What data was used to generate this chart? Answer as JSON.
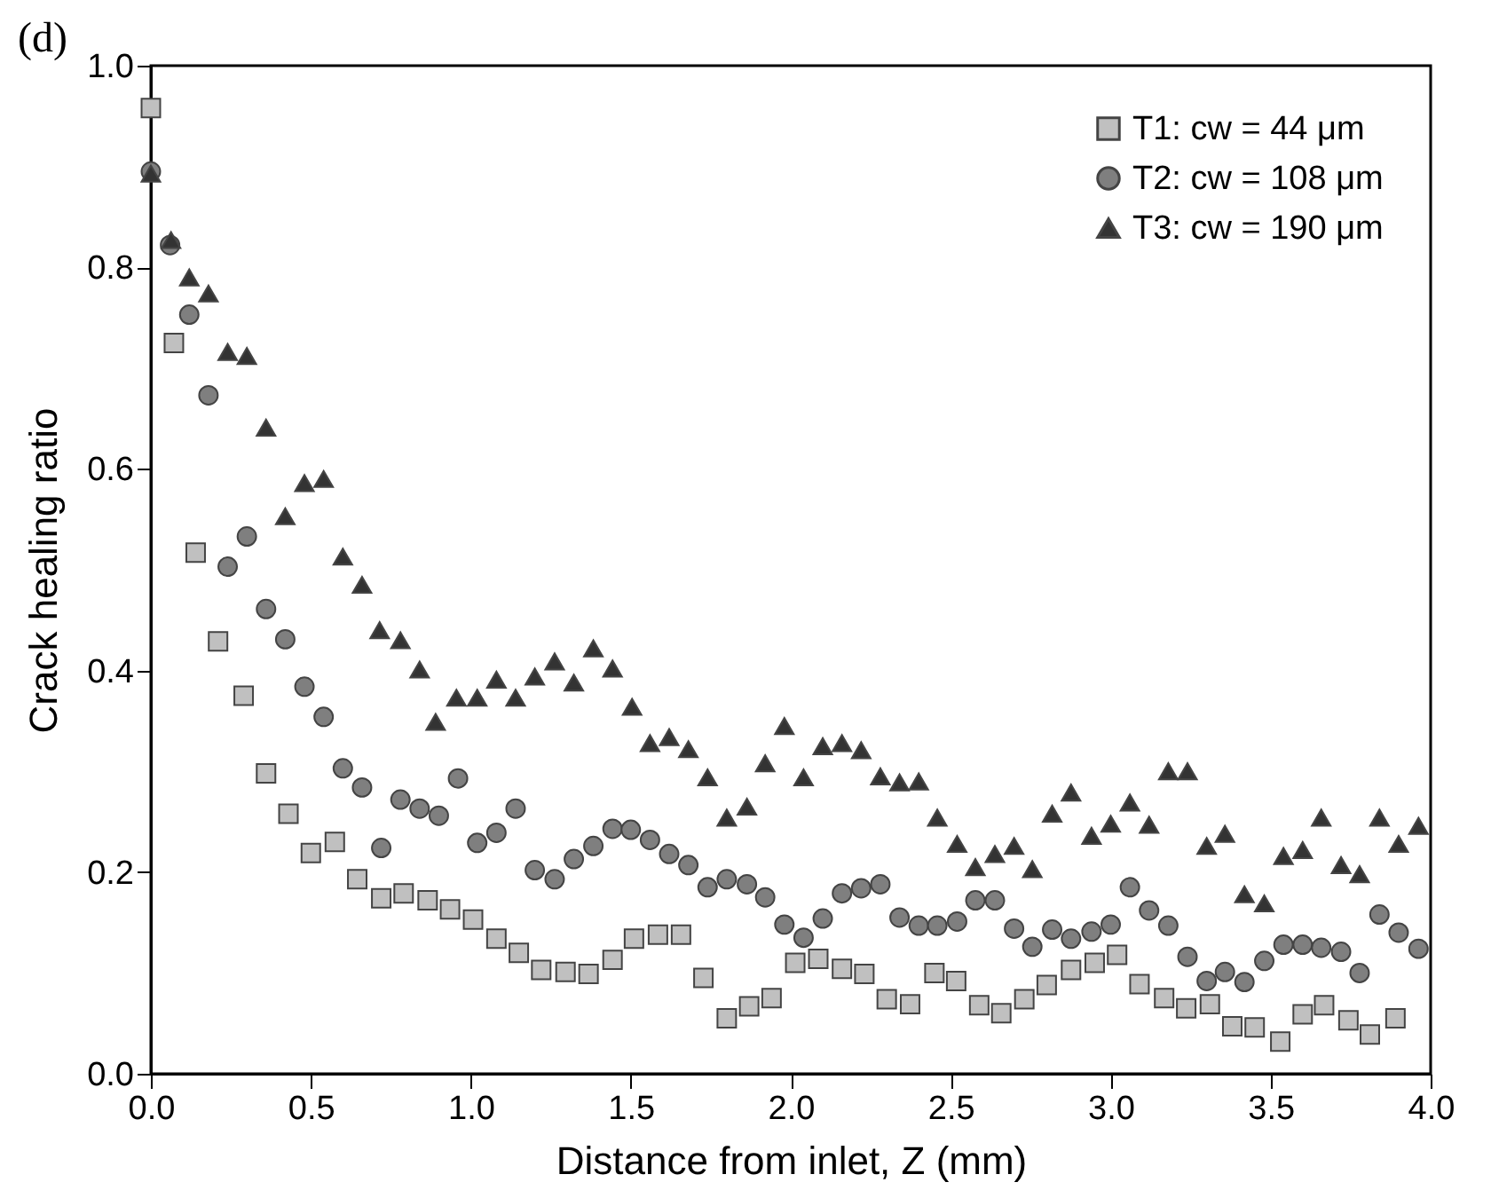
{
  "chart_data": {
    "type": "scatter",
    "title": "(d)",
    "xlabel": "Distance from inlet, Z (mm)",
    "ylabel": "Crack healing ratio",
    "xlim": [
      0,
      4
    ],
    "xticks": [
      {
        "value": 0,
        "label": "0.0"
      },
      0.5,
      {
        "value": 1,
        "label": "1.0"
      },
      1.5,
      {
        "value": 2,
        "label": "2.0"
      },
      2.5,
      {
        "value": 3,
        "label": "3.0"
      },
      3.5,
      {
        "value": 4,
        "label": "4.0"
      }
    ],
    "ylim": [
      0,
      1
    ],
    "yticks": [
      {
        "value": 0,
        "label": "0.0"
      },
      0.2,
      0.4,
      0.6,
      0.8,
      {
        "value": 1,
        "label": "1.0"
      }
    ],
    "grid": false,
    "legend": "top right",
    "series": [
      {
        "name": "T1: cw = 44 μm",
        "color": "#c0c0c0",
        "marker": "square",
        "x": [
          0.0,
          0.072,
          0.14,
          0.21,
          0.29,
          0.36,
          0.43,
          0.5,
          0.575,
          0.645,
          0.72,
          0.79,
          0.865,
          0.935,
          1.007,
          1.08,
          1.15,
          1.22,
          1.296,
          1.368,
          1.443,
          1.51,
          1.585,
          1.657,
          1.727,
          1.8,
          1.87,
          1.94,
          2.014,
          2.086,
          2.16,
          2.23,
          2.3,
          2.373,
          2.449,
          2.517,
          2.589,
          2.658,
          2.73,
          2.8,
          2.876,
          2.95,
          3.02,
          3.09,
          3.167,
          3.236,
          3.31,
          3.38,
          3.45,
          3.53,
          3.6,
          3.667,
          3.743,
          3.81,
          3.89
        ],
        "values": [
          0.958,
          0.725,
          0.517,
          0.429,
          0.375,
          0.298,
          0.258,
          0.219,
          0.23,
          0.193,
          0.174,
          0.179,
          0.172,
          0.163,
          0.153,
          0.134,
          0.12,
          0.103,
          0.101,
          0.099,
          0.113,
          0.134,
          0.138,
          0.138,
          0.095,
          0.055,
          0.067,
          0.075,
          0.11,
          0.114,
          0.104,
          0.099,
          0.074,
          0.069,
          0.1,
          0.092,
          0.068,
          0.06,
          0.074,
          0.088,
          0.103,
          0.11,
          0.118,
          0.089,
          0.075,
          0.065,
          0.069,
          0.047,
          0.046,
          0.032,
          0.059,
          0.068,
          0.053,
          0.039,
          0.055
        ]
      },
      {
        "name": "T2: cw = 108 μm",
        "color": "#7f7f7f",
        "marker": "circle",
        "x": [
          0.0,
          0.06,
          0.12,
          0.18,
          0.24,
          0.3,
          0.36,
          0.42,
          0.48,
          0.54,
          0.6,
          0.66,
          0.72,
          0.78,
          0.84,
          0.9,
          0.96,
          1.02,
          1.08,
          1.14,
          1.2,
          1.262,
          1.322,
          1.383,
          1.443,
          1.5,
          1.56,
          1.62,
          1.68,
          1.74,
          1.8,
          1.863,
          1.92,
          1.98,
          2.04,
          2.1,
          2.16,
          2.22,
          2.28,
          2.34,
          2.4,
          2.458,
          2.52,
          2.577,
          2.638,
          2.698,
          2.755,
          2.817,
          2.876,
          2.94,
          3.0,
          3.06,
          3.12,
          3.18,
          3.24,
          3.3,
          3.357,
          3.418,
          3.48,
          3.54,
          3.6,
          3.658,
          3.72,
          3.778,
          3.84,
          3.9,
          3.962
        ],
        "values": [
          0.895,
          0.822,
          0.753,
          0.673,
          0.503,
          0.533,
          0.461,
          0.431,
          0.384,
          0.354,
          0.303,
          0.284,
          0.224,
          0.272,
          0.263,
          0.256,
          0.293,
          0.229,
          0.239,
          0.263,
          0.202,
          0.193,
          0.213,
          0.226,
          0.243,
          0.242,
          0.232,
          0.218,
          0.207,
          0.185,
          0.193,
          0.188,
          0.175,
          0.148,
          0.135,
          0.154,
          0.179,
          0.184,
          0.188,
          0.155,
          0.147,
          0.147,
          0.151,
          0.172,
          0.172,
          0.144,
          0.126,
          0.143,
          0.134,
          0.141,
          0.148,
          0.185,
          0.162,
          0.147,
          0.116,
          0.092,
          0.101,
          0.091,
          0.112,
          0.128,
          0.128,
          0.125,
          0.121,
          0.1,
          0.158,
          0.14,
          0.124
        ]
      },
      {
        "name": "T3: cw = 190 μm",
        "color": "#333333",
        "marker": "triangle",
        "x": [
          0.0,
          0.063,
          0.12,
          0.18,
          0.24,
          0.3,
          0.36,
          0.42,
          0.48,
          0.54,
          0.6,
          0.66,
          0.715,
          0.78,
          0.84,
          0.89,
          0.955,
          1.02,
          1.08,
          1.14,
          1.2,
          1.262,
          1.322,
          1.383,
          1.443,
          1.504,
          1.56,
          1.62,
          1.68,
          1.74,
          1.8,
          1.863,
          1.92,
          1.98,
          2.04,
          2.1,
          2.16,
          2.22,
          2.28,
          2.34,
          2.4,
          2.458,
          2.52,
          2.577,
          2.638,
          2.698,
          2.755,
          2.817,
          2.876,
          2.94,
          3.0,
          3.06,
          3.12,
          3.18,
          3.24,
          3.3,
          3.357,
          3.418,
          3.48,
          3.54,
          3.6,
          3.658,
          3.72,
          3.778,
          3.84,
          3.9,
          3.962
        ],
        "values": [
          0.893,
          0.827,
          0.79,
          0.774,
          0.716,
          0.712,
          0.641,
          0.553,
          0.586,
          0.59,
          0.513,
          0.485,
          0.44,
          0.43,
          0.401,
          0.349,
          0.373,
          0.373,
          0.391,
          0.373,
          0.394,
          0.409,
          0.388,
          0.422,
          0.402,
          0.364,
          0.328,
          0.334,
          0.322,
          0.294,
          0.254,
          0.265,
          0.308,
          0.345,
          0.294,
          0.325,
          0.328,
          0.321,
          0.295,
          0.289,
          0.29,
          0.254,
          0.228,
          0.205,
          0.218,
          0.226,
          0.203,
          0.258,
          0.279,
          0.236,
          0.248,
          0.269,
          0.247,
          0.3,
          0.3,
          0.226,
          0.238,
          0.178,
          0.169,
          0.216,
          0.222,
          0.254,
          0.207,
          0.198,
          0.254,
          0.228,
          0.246
        ]
      }
    ]
  }
}
